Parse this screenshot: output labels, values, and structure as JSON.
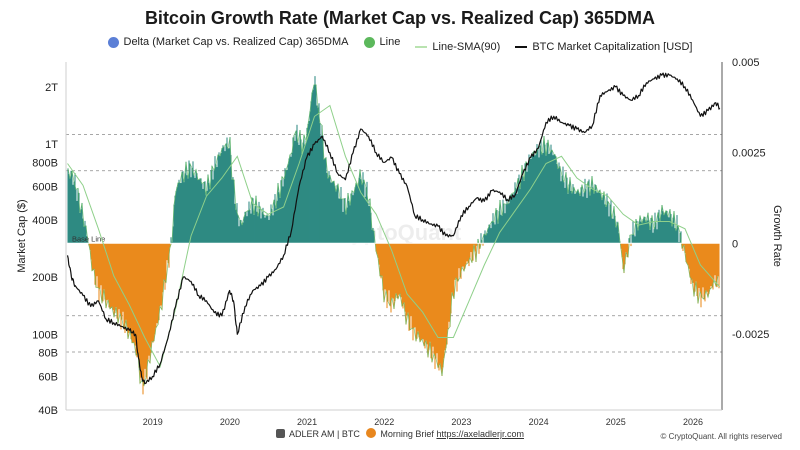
{
  "chart_data": {
    "type": "line",
    "title": "Bitcoin Growth Rate (Market Cap vs. Realized Cap) 365DMA",
    "legend": [
      {
        "name": "Delta (Market Cap vs. Realized Cap) 365DMA",
        "color": "#5b7fd6",
        "marker": "dot"
      },
      {
        "name": "Line",
        "color": "#5cb85c",
        "marker": "dot"
      },
      {
        "name": "Line-SMA(90)",
        "color": "#b9e3b0",
        "marker": "line"
      },
      {
        "name": "BTC Market Capitalization [USD]",
        "color": "#111111",
        "marker": "line"
      }
    ],
    "ylabel_left": "Market Cap ($)",
    "ylabel_right": "Growth Rate",
    "left_ticks": [
      "40B",
      "60B",
      "80B",
      "100B",
      "200B",
      "400B",
      "600B",
      "800B",
      "1T",
      "2T"
    ],
    "left_tick_values": [
      40,
      60,
      80,
      100,
      200,
      400,
      600,
      800,
      1000,
      2000
    ],
    "left_scale": "log",
    "left_ylim": [
      40,
      2700
    ],
    "right_ticks": [
      "0.005",
      "0.0025",
      "0",
      "-0.0025"
    ],
    "right_tick_values": [
      0.005,
      0.0025,
      0,
      -0.0025
    ],
    "right_ylim": [
      -0.0046,
      0.005
    ],
    "x_ticks": [
      "2019",
      "2020",
      "2021",
      "2022",
      "2023",
      "2024",
      "2025",
      "2026"
    ],
    "x_tick_values": [
      2019.0,
      2020.0,
      2021.0,
      2022.0,
      2023.0,
      2024.0,
      2025.0,
      2026.0
    ],
    "xlim": [
      2017.98,
      2026.48
    ],
    "base_line_label": "Base Line",
    "reference_lines": [
      0.003,
      0.002,
      -0.002,
      -0.003
    ],
    "growth_rate": {
      "x": [
        2018.0,
        2018.08,
        2018.15,
        2018.25,
        2018.33,
        2018.4,
        2018.5,
        2018.6,
        2018.7,
        2018.8,
        2018.88,
        2018.92,
        2018.96,
        2019.0,
        2019.05,
        2019.1,
        2019.2,
        2019.3,
        2019.35,
        2019.4,
        2019.5,
        2019.6,
        2019.7,
        2019.8,
        2019.9,
        2020.0,
        2020.1,
        2020.15,
        2020.2,
        2020.25,
        2020.3,
        2020.4,
        2020.5,
        2020.6,
        2020.7,
        2020.8,
        2020.9,
        2020.95,
        2021.0,
        2021.05,
        2021.1,
        2021.15,
        2021.2,
        2021.25,
        2021.3,
        2021.35,
        2021.4,
        2021.5,
        2021.6,
        2021.7,
        2021.8,
        2021.9,
        2021.95,
        2022.0,
        2022.1,
        2022.2,
        2022.3,
        2022.4,
        2022.5,
        2022.6,
        2022.7,
        2022.8,
        2022.85,
        2022.9,
        2022.95,
        2023.0,
        2023.1,
        2023.2,
        2023.3,
        2023.4,
        2023.5,
        2023.6,
        2023.7,
        2023.8,
        2023.9,
        2024.0,
        2024.1,
        2024.2,
        2024.3,
        2024.4,
        2024.5,
        2024.6,
        2024.7,
        2024.8,
        2024.9,
        2025.0,
        2025.1,
        2025.15,
        2025.2,
        2025.3,
        2025.4,
        2025.5,
        2025.6,
        2025.7,
        2025.8,
        2025.9,
        2026.0,
        2026.1,
        2026.2,
        2026.3,
        2026.4,
        2026.45
      ],
      "values": [
        0.002,
        0.0018,
        0.0012,
        0.0003,
        -0.0008,
        -0.0013,
        -0.0016,
        -0.0019,
        -0.0021,
        -0.0025,
        -0.0029,
        -0.0033,
        -0.004,
        -0.0038,
        -0.0033,
        -0.0028,
        -0.0019,
        -0.0006,
        0.0001,
        0.0015,
        0.0019,
        0.0021,
        0.0018,
        0.0015,
        0.0021,
        0.0026,
        0.0028,
        0.0016,
        0.0008,
        0.0005,
        0.0008,
        0.0011,
        0.0009,
        0.0007,
        0.0012,
        0.0018,
        0.0025,
        0.0031,
        0.0029,
        0.0027,
        0.003,
        0.0038,
        0.0046,
        0.0037,
        0.003,
        0.0021,
        0.0018,
        0.0015,
        0.001,
        0.0014,
        0.0019,
        0.0013,
        0.0005,
        -0.0002,
        -0.0014,
        -0.0017,
        -0.0014,
        -0.0021,
        -0.0025,
        -0.0027,
        -0.003,
        -0.0033,
        -0.0036,
        -0.0029,
        -0.0022,
        -0.0013,
        -0.0008,
        -0.0005,
        -0.0002,
        0.0002,
        0.0006,
        0.0009,
        0.0011,
        0.0015,
        0.0019,
        0.0024,
        0.0026,
        0.0027,
        0.0025,
        0.0019,
        0.0016,
        0.0014,
        0.0015,
        0.0016,
        0.0014,
        0.0011,
        0.0007,
        0.0003,
        -0.0008,
        0.0002,
        0.0006,
        0.0007,
        0.0005,
        0.0009,
        0.0008,
        0.0005,
        -0.0003,
        -0.0012,
        -0.0015,
        -0.0014,
        -0.001,
        -0.0013
      ]
    },
    "growth_rate_sma90": {
      "x": [
        2018.0,
        2018.2,
        2018.4,
        2018.6,
        2018.8,
        2019.0,
        2019.2,
        2019.4,
        2019.6,
        2019.8,
        2020.0,
        2020.2,
        2020.4,
        2020.6,
        2020.8,
        2021.0,
        2021.2,
        2021.4,
        2021.6,
        2021.8,
        2022.0,
        2022.2,
        2022.4,
        2022.6,
        2022.8,
        2023.0,
        2023.2,
        2023.4,
        2023.6,
        2023.8,
        2024.0,
        2024.2,
        2024.4,
        2024.6,
        2024.8,
        2025.0,
        2025.2,
        2025.4,
        2025.6,
        2025.8,
        2026.0,
        2026.2,
        2026.45
      ],
      "values": [
        0.0022,
        0.0016,
        0.0004,
        -0.0009,
        -0.0017,
        -0.0026,
        -0.0034,
        -0.0018,
        0.0002,
        0.0013,
        0.0018,
        0.0024,
        0.0011,
        0.0008,
        0.001,
        0.0022,
        0.0035,
        0.0038,
        0.0024,
        0.0014,
        0.0008,
        -0.0002,
        -0.0014,
        -0.0019,
        -0.0026,
        -0.0026,
        -0.0016,
        -0.0006,
        0.0003,
        0.0009,
        0.0015,
        0.0022,
        0.0024,
        0.0018,
        0.0015,
        0.0013,
        0.0008,
        0.0005,
        0.0006,
        0.0006,
        0.0004,
        -0.0006,
        -0.0012
      ]
    },
    "market_cap_billions": {
      "x": [
        2018.0,
        2018.05,
        2018.1,
        2018.2,
        2018.3,
        2018.4,
        2018.5,
        2018.6,
        2018.7,
        2018.8,
        2018.88,
        2018.92,
        2018.96,
        2019.0,
        2019.1,
        2019.2,
        2019.3,
        2019.4,
        2019.5,
        2019.6,
        2019.7,
        2019.8,
        2019.9,
        2020.0,
        2020.1,
        2020.15,
        2020.2,
        2020.3,
        2020.4,
        2020.5,
        2020.6,
        2020.7,
        2020.8,
        2020.9,
        2021.0,
        2021.1,
        2021.2,
        2021.3,
        2021.4,
        2021.5,
        2021.6,
        2021.7,
        2021.8,
        2021.9,
        2022.0,
        2022.1,
        2022.2,
        2022.3,
        2022.4,
        2022.5,
        2022.6,
        2022.7,
        2022.8,
        2022.9,
        2023.0,
        2023.1,
        2023.2,
        2023.3,
        2023.4,
        2023.5,
        2023.6,
        2023.7,
        2023.8,
        2023.9,
        2024.0,
        2024.1,
        2024.2,
        2024.3,
        2024.4,
        2024.5,
        2024.6,
        2024.7,
        2024.8,
        2024.9,
        2025.0,
        2025.1,
        2025.2,
        2025.3,
        2025.4,
        2025.5,
        2025.6,
        2025.7,
        2025.8,
        2025.9,
        2026.0,
        2026.1,
        2026.2,
        2026.3,
        2026.4,
        2026.45
      ],
      "values": [
        260,
        200,
        180,
        160,
        140,
        150,
        120,
        115,
        110,
        105,
        100,
        75,
        60,
        55,
        60,
        70,
        95,
        140,
        200,
        190,
        160,
        150,
        130,
        125,
        170,
        150,
        100,
        140,
        170,
        180,
        200,
        220,
        260,
        350,
        600,
        850,
        1000,
        1100,
        900,
        700,
        650,
        900,
        1200,
        1100,
        900,
        800,
        850,
        700,
        600,
        420,
        400,
        380,
        370,
        330,
        330,
        420,
        470,
        520,
        500,
        570,
        560,
        510,
        540,
        700,
        850,
        950,
        1300,
        1400,
        1300,
        1250,
        1200,
        1150,
        1250,
        1800,
        1900,
        2000,
        1800,
        1700,
        1800,
        2100,
        2200,
        2300,
        2300,
        2200,
        2000,
        1700,
        1400,
        1500,
        1650,
        1550
      ]
    }
  },
  "footer": {
    "brand": "ADLER AM | BTC",
    "brief": "Morning Brief",
    "link": "https://axeladlerjr.com",
    "copyright": "© CryptoQuant. All rights reserved"
  },
  "watermark": "CryptoQuant"
}
